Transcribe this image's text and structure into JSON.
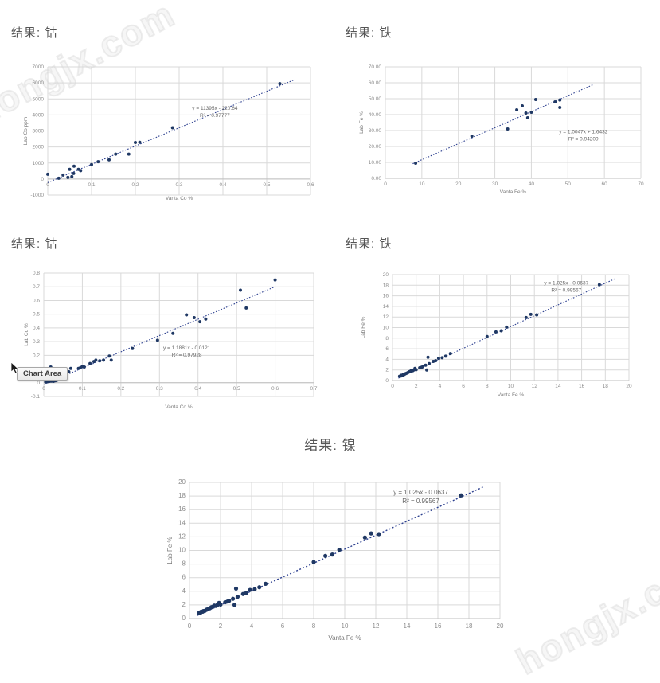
{
  "page": {
    "watermark_text": "hongjx.com"
  },
  "tooltip": {
    "label": "Chart Area"
  },
  "colors": {
    "point": "#1f3864",
    "trend": "#2e4190",
    "grid": "#d9d9d9",
    "axis": "#bfbfbf",
    "tick_text": "#8c8c8c",
    "axis_title_text": "#7a7a7a",
    "equation_text": "#666666",
    "title_text": "#555555"
  },
  "chart_data": [
    {
      "type": "scatter",
      "title": "结果: 钴",
      "xlabel": "Vanta Co %",
      "ylabel": "Lab Co ppm",
      "xlim": [
        0,
        0.6
      ],
      "ylim": [
        -1000,
        7000
      ],
      "x_ticks": [
        0,
        0.1,
        0.2,
        0.3,
        0.4,
        0.5,
        0.6
      ],
      "x_tick_labels": [
        "0",
        "0.1",
        "0.2",
        "0.3",
        "0.4",
        "0.5",
        "0.6"
      ],
      "y_ticks": [
        -1000,
        0,
        1000,
        2000,
        3000,
        4000,
        5000,
        6000,
        7000
      ],
      "y_tick_labels": [
        "-1000",
        "0",
        "1000",
        "2000",
        "3000",
        "4000",
        "5000",
        "6000",
        "7000"
      ],
      "grid": true,
      "equation": "y = 11395x - 220.64",
      "r_squared": "R² = 0.97777",
      "trend": {
        "slope": 11395,
        "intercept": -220.64,
        "x_start": 0,
        "x_end": 0.565
      },
      "points": [
        [
          0.0,
          300
        ],
        [
          0.025,
          50
        ],
        [
          0.035,
          250
        ],
        [
          0.046,
          100
        ],
        [
          0.05,
          600
        ],
        [
          0.055,
          150
        ],
        [
          0.059,
          350
        ],
        [
          0.06,
          800
        ],
        [
          0.07,
          600
        ],
        [
          0.075,
          520
        ],
        [
          0.1,
          900
        ],
        [
          0.115,
          1080
        ],
        [
          0.14,
          1200
        ],
        [
          0.155,
          1550
        ],
        [
          0.185,
          1550
        ],
        [
          0.2,
          2280
        ],
        [
          0.21,
          2290
        ],
        [
          0.285,
          3200
        ],
        [
          0.53,
          5950
        ]
      ]
    },
    {
      "type": "scatter",
      "title": "结果: 铁",
      "xlabel": "Vanta Fe %",
      "ylabel": "Lab Fe %",
      "xlim": [
        0,
        70
      ],
      "ylim": [
        0,
        70
      ],
      "x_ticks": [
        0,
        10,
        20,
        30,
        40,
        50,
        60,
        70
      ],
      "x_tick_labels": [
        "0",
        "10",
        "20",
        "30",
        "40",
        "50",
        "60",
        "70"
      ],
      "y_ticks": [
        0,
        10,
        20,
        30,
        40,
        50,
        60,
        70
      ],
      "y_tick_labels": [
        "0.00",
        "10.00",
        "20.00",
        "30.00",
        "40.00",
        "50.00",
        "60.00",
        "70.00"
      ],
      "grid": true,
      "equation": "y = 1.0047x + 1.6432",
      "r_squared": "R² = 0.94209",
      "trend": {
        "slope": 1.0047,
        "intercept": 1.6432,
        "x_start": 7.5,
        "x_end": 57
      },
      "points": [
        [
          8.3,
          9.5
        ],
        [
          23.7,
          26.5
        ],
        [
          33.5,
          31.0
        ],
        [
          36.0,
          43.0
        ],
        [
          37.5,
          45.5
        ],
        [
          38.5,
          41.0
        ],
        [
          39.0,
          38.0
        ],
        [
          40.0,
          41.5
        ],
        [
          41.2,
          49.5
        ],
        [
          46.5,
          48.0
        ],
        [
          47.8,
          49.2
        ],
        [
          47.8,
          44.5
        ]
      ]
    },
    {
      "type": "scatter",
      "title": "结果: 钴",
      "xlabel": "Vanta Co %",
      "ylabel": "Lab Co %",
      "xlim": [
        0,
        0.7
      ],
      "ylim": [
        -0.1,
        0.8
      ],
      "x_ticks": [
        0,
        0.1,
        0.2,
        0.3,
        0.4,
        0.5,
        0.6,
        0.7
      ],
      "x_tick_labels": [
        "0",
        "0.1",
        "0.2",
        "0.3",
        "0.4",
        "0.5",
        "0.6",
        "0.7"
      ],
      "y_ticks": [
        -0.1,
        0,
        0.1,
        0.2,
        0.3,
        0.4,
        0.5,
        0.6,
        0.7,
        0.8
      ],
      "y_tick_labels": [
        "-0.1",
        "0",
        "0.1",
        "0.2",
        "0.3",
        "0.4",
        "0.5",
        "0.6",
        "0.7",
        "0.8"
      ],
      "grid": true,
      "equation": "y = 1.1881x - 0.0121",
      "r_squared": "R² = 0.97928",
      "trend": {
        "slope": 1.1881,
        "intercept": -0.0121,
        "x_start": 0,
        "x_end": 0.6
      },
      "points": [
        [
          0.005,
          0.005
        ],
        [
          0.01,
          0.008
        ],
        [
          0.015,
          0.01
        ],
        [
          0.02,
          0.012
        ],
        [
          0.025,
          0.01
        ],
        [
          0.03,
          0.015
        ],
        [
          0.035,
          0.02
        ],
        [
          0.018,
          0.115
        ],
        [
          0.065,
          0.08
        ],
        [
          0.07,
          0.105
        ],
        [
          0.09,
          0.105
        ],
        [
          0.095,
          0.11
        ],
        [
          0.1,
          0.12
        ],
        [
          0.105,
          0.115
        ],
        [
          0.12,
          0.14
        ],
        [
          0.13,
          0.155
        ],
        [
          0.135,
          0.165
        ],
        [
          0.145,
          0.16
        ],
        [
          0.155,
          0.165
        ],
        [
          0.17,
          0.195
        ],
        [
          0.175,
          0.165
        ],
        [
          0.23,
          0.25
        ],
        [
          0.295,
          0.31
        ],
        [
          0.335,
          0.36
        ],
        [
          0.37,
          0.495
        ],
        [
          0.39,
          0.475
        ],
        [
          0.405,
          0.445
        ],
        [
          0.42,
          0.465
        ],
        [
          0.51,
          0.675
        ],
        [
          0.525,
          0.545
        ],
        [
          0.6,
          0.75
        ]
      ]
    },
    {
      "type": "scatter",
      "title": "结果: 铁",
      "xlabel": "Vanta Fe %",
      "ylabel": "Lab Fe %",
      "xlim": [
        0,
        20
      ],
      "ylim": [
        0,
        20
      ],
      "x_ticks": [
        0,
        2,
        4,
        6,
        8,
        10,
        12,
        14,
        16,
        18,
        20
      ],
      "x_tick_labels": [
        "0",
        "2",
        "4",
        "6",
        "8",
        "10",
        "12",
        "14",
        "16",
        "18",
        "20"
      ],
      "y_ticks": [
        0,
        2,
        4,
        6,
        8,
        10,
        12,
        14,
        16,
        18,
        20
      ],
      "y_tick_labels": [
        "0",
        "2",
        "4",
        "6",
        "8",
        "10",
        "12",
        "14",
        "16",
        "18",
        "20"
      ],
      "grid": true,
      "equation": "y = 1.025x - 0.0637",
      "r_squared": "R² = 0.99567",
      "trend": {
        "slope": 1.025,
        "intercept": -0.0637,
        "x_start": 0.5,
        "x_end": 18.9
      },
      "points": [
        [
          0.6,
          0.8
        ],
        [
          0.7,
          0.85
        ],
        [
          0.75,
          1.0
        ],
        [
          0.85,
          1.0
        ],
        [
          0.9,
          1.1
        ],
        [
          1.0,
          1.15
        ],
        [
          1.1,
          1.3
        ],
        [
          1.2,
          1.4
        ],
        [
          1.3,
          1.5
        ],
        [
          1.4,
          1.65
        ],
        [
          1.5,
          1.75
        ],
        [
          1.6,
          1.9
        ],
        [
          1.7,
          1.85
        ],
        [
          1.8,
          2.0
        ],
        [
          1.9,
          2.3
        ],
        [
          2.0,
          2.05
        ],
        [
          2.3,
          2.4
        ],
        [
          2.45,
          2.5
        ],
        [
          2.55,
          2.6
        ],
        [
          2.8,
          2.9
        ],
        [
          2.9,
          2.0
        ],
        [
          3.0,
          4.4
        ],
        [
          3.1,
          3.2
        ],
        [
          3.45,
          3.6
        ],
        [
          3.65,
          3.75
        ],
        [
          3.9,
          4.2
        ],
        [
          4.2,
          4.3
        ],
        [
          4.5,
          4.6
        ],
        [
          4.9,
          5.1
        ],
        [
          8.0,
          8.3
        ],
        [
          8.75,
          9.2
        ],
        [
          9.2,
          9.4
        ],
        [
          9.65,
          10.1
        ],
        [
          11.3,
          11.9
        ],
        [
          11.7,
          12.5
        ],
        [
          12.2,
          12.4
        ],
        [
          17.5,
          18.1
        ]
      ]
    },
    {
      "type": "scatter",
      "title": "结果: 镍",
      "xlabel": "Vanta Fe %",
      "ylabel": "Lab Fe %",
      "xlim": [
        0,
        20
      ],
      "ylim": [
        0,
        20
      ],
      "x_ticks": [
        0,
        2,
        4,
        6,
        8,
        10,
        12,
        14,
        16,
        18,
        20
      ],
      "x_tick_labels": [
        "0",
        "2",
        "4",
        "6",
        "8",
        "10",
        "12",
        "14",
        "16",
        "18",
        "20"
      ],
      "y_ticks": [
        0,
        2,
        4,
        6,
        8,
        10,
        12,
        14,
        16,
        18,
        20
      ],
      "y_tick_labels": [
        "0",
        "2",
        "4",
        "6",
        "8",
        "10",
        "12",
        "14",
        "16",
        "18",
        "20"
      ],
      "grid": true,
      "equation": "y = 1.025x - 0.0637",
      "r_squared": "R² = 0.99567",
      "trend": {
        "slope": 1.025,
        "intercept": -0.0637,
        "x_start": 0.5,
        "x_end": 18.9
      },
      "points": [
        [
          0.6,
          0.8
        ],
        [
          0.7,
          0.85
        ],
        [
          0.75,
          1.0
        ],
        [
          0.85,
          1.0
        ],
        [
          0.9,
          1.1
        ],
        [
          1.0,
          1.15
        ],
        [
          1.1,
          1.3
        ],
        [
          1.2,
          1.4
        ],
        [
          1.3,
          1.5
        ],
        [
          1.4,
          1.65
        ],
        [
          1.5,
          1.75
        ],
        [
          1.6,
          1.9
        ],
        [
          1.7,
          1.85
        ],
        [
          1.8,
          2.0
        ],
        [
          1.9,
          2.3
        ],
        [
          2.0,
          2.05
        ],
        [
          2.3,
          2.4
        ],
        [
          2.45,
          2.5
        ],
        [
          2.55,
          2.6
        ],
        [
          2.8,
          2.9
        ],
        [
          2.9,
          2.0
        ],
        [
          3.0,
          4.4
        ],
        [
          3.1,
          3.2
        ],
        [
          3.45,
          3.6
        ],
        [
          3.65,
          3.75
        ],
        [
          3.9,
          4.2
        ],
        [
          4.2,
          4.3
        ],
        [
          4.5,
          4.6
        ],
        [
          4.9,
          5.1
        ],
        [
          8.0,
          8.3
        ],
        [
          8.75,
          9.2
        ],
        [
          9.2,
          9.4
        ],
        [
          9.65,
          10.1
        ],
        [
          11.3,
          11.9
        ],
        [
          11.7,
          12.5
        ],
        [
          12.2,
          12.4
        ],
        [
          17.5,
          18.1
        ]
      ]
    }
  ]
}
